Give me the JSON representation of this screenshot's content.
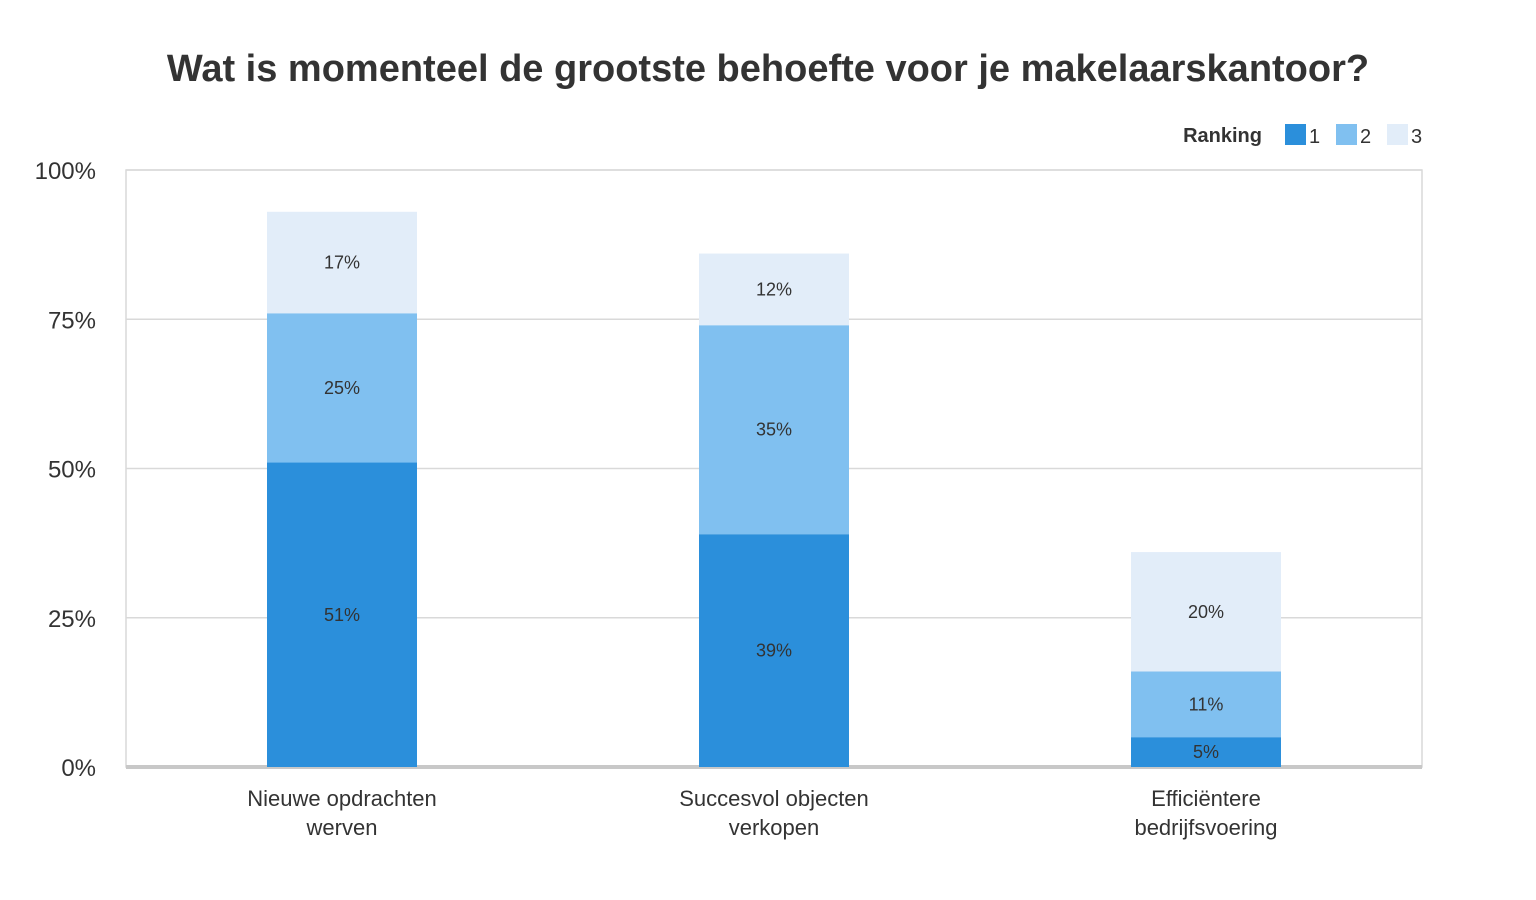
{
  "chart_data": {
    "type": "bar",
    "stacked": true,
    "title": "Wat is momenteel de grootste behoefte voor je makelaarskantoor?",
    "categories": [
      [
        "Nieuwe opdrachten",
        "werven"
      ],
      [
        "Succesvol objecten",
        "verkopen"
      ],
      [
        "Efficiëntere",
        "bedrijfsvoering"
      ]
    ],
    "series": [
      {
        "name": "1",
        "values": [
          51,
          39,
          5
        ],
        "labels": [
          "51%",
          "39%",
          "5%"
        ],
        "color": "#2b8fdb"
      },
      {
        "name": "2",
        "values": [
          25,
          35,
          11
        ],
        "labels": [
          "25%",
          "35%",
          "11%"
        ],
        "color": "#80c0f0"
      },
      {
        "name": "3",
        "values": [
          17,
          12,
          20
        ],
        "labels": [
          "17%",
          "12%",
          "20%"
        ],
        "color": "#e2edf9"
      }
    ],
    "legend_title": "Ranking",
    "legend_position": "top-right",
    "ylim": [
      0,
      100
    ],
    "yticks": [
      0,
      25,
      50,
      75,
      100
    ],
    "ytick_labels": [
      "0%",
      "25%",
      "50%",
      "75%",
      "100%"
    ],
    "grid": true,
    "xlabel": "",
    "ylabel": ""
  }
}
